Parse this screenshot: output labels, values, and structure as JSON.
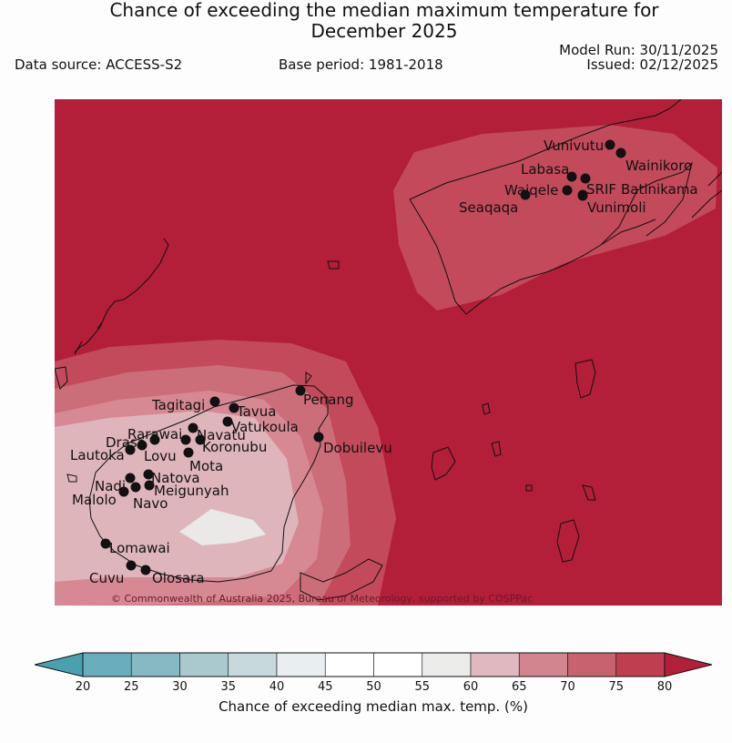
{
  "header": {
    "title_line1": "Chance of exceeding the median maximum temperature for",
    "title_line2": "December 2025",
    "data_source": "Data source: ACCESS-S2",
    "base_period": "Base period: 1981-2018",
    "model_run": "Model Run: 30/11/2025",
    "issued": "Issued: 02/12/2025"
  },
  "map": {
    "copyright": "© Commonwealth of Australia 2025, Bureau of Meteorology, supported by COSPPac",
    "background_color": "#b31e39",
    "towns": [
      {
        "name": "Vunivutu"
      },
      {
        "name": "Wainikoro"
      },
      {
        "name": "Labasa"
      },
      {
        "name": "Waiqele"
      },
      {
        "name": "SRIF"
      },
      {
        "name": "Batinikama"
      },
      {
        "name": "Seaqaqa"
      },
      {
        "name": "Vunimoli"
      },
      {
        "name": "Penang"
      },
      {
        "name": "Tagitagi"
      },
      {
        "name": "Tavua"
      },
      {
        "name": "Vatukoula"
      },
      {
        "name": "Rarawai"
      },
      {
        "name": "Navatu"
      },
      {
        "name": "Drasa"
      },
      {
        "name": "Koronubu"
      },
      {
        "name": "Lautoka"
      },
      {
        "name": "Lovu"
      },
      {
        "name": "Dobuilevu"
      },
      {
        "name": "Mota"
      },
      {
        "name": "Natova"
      },
      {
        "name": "Nadi"
      },
      {
        "name": "Meigunyah"
      },
      {
        "name": "Malolo"
      },
      {
        "name": "Navo"
      },
      {
        "name": "Lomawai"
      },
      {
        "name": "Cuvu"
      },
      {
        "name": "Olosara"
      }
    ]
  },
  "legend": {
    "label": "Chance of exceeding median max. temp. (%)",
    "ticks": [
      "20",
      "25",
      "30",
      "35",
      "40",
      "45",
      "50",
      "55",
      "60",
      "65",
      "70",
      "75",
      "80"
    ],
    "under_color": "#4aa0b0",
    "over_color": "#b31e39",
    "colors": [
      "#6aaebd",
      "#87b9c5",
      "#a9c9cf",
      "#c7d9dd",
      "#e9eef0",
      "#ffffff",
      "#ffffff",
      "#ececea",
      "#e0b8bf",
      "#d2848f",
      "#c8626e",
      "#bf3e50"
    ]
  }
}
